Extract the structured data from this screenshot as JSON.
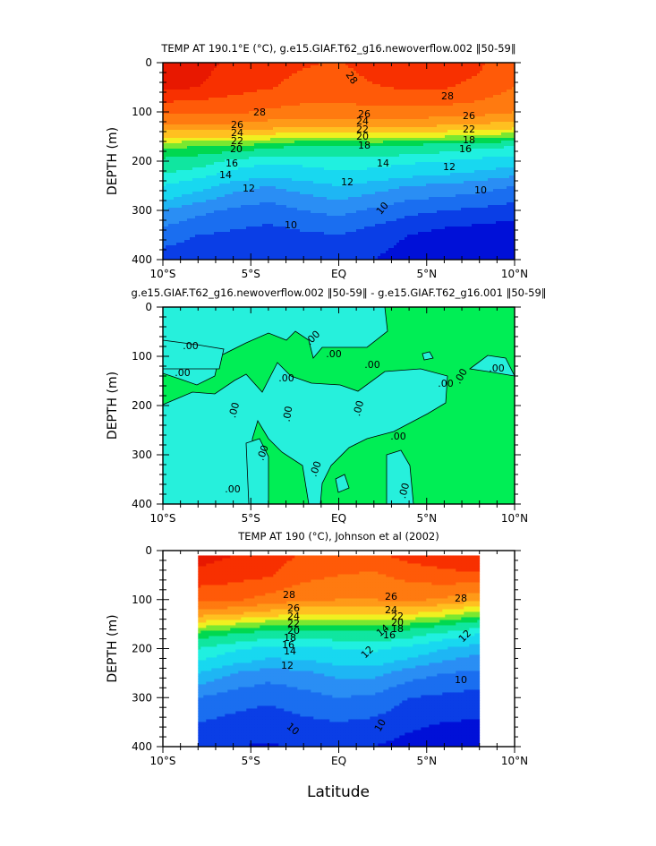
{
  "figure": {
    "xlabel": "Latitude"
  },
  "chart_data": [
    {
      "type": "heatmap",
      "title": "TEMP AT 190.1°E (°C), g.e15.GIAF.T62_g16.newoverflow.002 ‖50-59‖",
      "xlabel": "",
      "ylabel": "DEPTH (m)",
      "xlim": [
        -10,
        10
      ],
      "ylim": [
        400,
        0
      ],
      "x_ticks": [
        -10,
        -5,
        0,
        5,
        10
      ],
      "x_tick_labels": [
        "10°S",
        "5°S",
        "EQ",
        "5°N",
        "10°N"
      ],
      "y_ticks": [
        0,
        100,
        200,
        300,
        400
      ],
      "y_tick_labels": [
        "0",
        "100",
        "200",
        "300",
        "400"
      ],
      "lat": [
        -10,
        -8,
        -6,
        -4,
        -2,
        0,
        2,
        4,
        6,
        8,
        10
      ],
      "depth": [
        0,
        50,
        100,
        130,
        150,
        170,
        200,
        250,
        300,
        350,
        400
      ],
      "temperature": [
        [
          30,
          29.5,
          29,
          28.6,
          28.4,
          28.2,
          28.8,
          29,
          29,
          28.5,
          27.5
        ],
        [
          29.5,
          29.2,
          28.8,
          28.4,
          28,
          27.8,
          28.2,
          28.5,
          28.4,
          28,
          27
        ],
        [
          27.5,
          27.5,
          27.3,
          26.8,
          26.5,
          26.5,
          26.6,
          26.6,
          26.5,
          26.2,
          25.5
        ],
        [
          25,
          25,
          25,
          24.5,
          24.2,
          24,
          24,
          24,
          23.8,
          23.5,
          23
        ],
        [
          22.5,
          22.5,
          22.5,
          22,
          21,
          21,
          21.5,
          21.2,
          21,
          20.5,
          20
        ],
        [
          20,
          19.5,
          19.5,
          18.5,
          17.8,
          17.5,
          18,
          17.5,
          17,
          16.5,
          16
        ],
        [
          17.5,
          17,
          15.5,
          14.8,
          15,
          15.5,
          15.3,
          14.8,
          14.5,
          14,
          13.5
        ],
        [
          14.5,
          13.5,
          12.5,
          12,
          12.5,
          13,
          12.5,
          12,
          11.8,
          11.5,
          11
        ],
        [
          12,
          11.3,
          10.8,
          10.5,
          11,
          11.3,
          10.8,
          10.3,
          10,
          9.8,
          9.5
        ],
        [
          10.5,
          10,
          9.8,
          9.6,
          9.8,
          10,
          9.5,
          9,
          8.6,
          8.4,
          8.2
        ],
        [
          9.5,
          9.3,
          9.2,
          9.2,
          9.2,
          9.3,
          9,
          8.5,
          8,
          7.8,
          7.6
        ]
      ],
      "contour_labels": [
        "28",
        "28",
        "28",
        "26",
        "26",
        "26",
        "24",
        "24",
        "22",
        "22",
        "22",
        "20",
        "20",
        "18",
        "18",
        "16",
        "16",
        "14",
        "14",
        "12",
        "12",
        "12",
        "10",
        "10",
        "10"
      ]
    },
    {
      "type": "heatmap",
      "title": "g.e15.GIAF.T62_g16.newoverflow.002 ‖50-59‖ - g.e15.GIAF.T62_g16.001 ‖50-59‖",
      "xlabel": "",
      "ylabel": "DEPTH (m)",
      "xlim": [
        -10,
        10
      ],
      "ylim": [
        400,
        0
      ],
      "x_ticks": [
        -10,
        -5,
        0,
        5,
        10
      ],
      "x_tick_labels": [
        "10°S",
        "5°S",
        "EQ",
        "5°N",
        "10°N"
      ],
      "y_ticks": [
        0,
        100,
        200,
        300,
        400
      ],
      "y_tick_labels": [
        "0",
        "100",
        "200",
        "300",
        "400"
      ],
      "background_color": "#00ee55",
      "negative_color": "#26f0dc",
      "contour_level": 0,
      "contour_labels": [
        ".00",
        ".00",
        ".00",
        ".00",
        ".00",
        ".00",
        ".00",
        ".00",
        ".00",
        ".00",
        ".00",
        ".00",
        ".00",
        ".00",
        ".00",
        ".00",
        ".00"
      ]
    },
    {
      "type": "heatmap",
      "title": "TEMP AT 190 (°C), Johnson et al (2002)",
      "xlabel": "Latitude",
      "ylabel": "DEPTH (m)",
      "xlim": [
        -10,
        10
      ],
      "ylim": [
        400,
        0
      ],
      "data_lat_range": [
        -8,
        8
      ],
      "data_depth_range": [
        10,
        400
      ],
      "x_ticks": [
        -10,
        -5,
        0,
        5,
        10
      ],
      "x_tick_labels": [
        "10°S",
        "5°S",
        "EQ",
        "5°N",
        "10°N"
      ],
      "y_ticks": [
        0,
        100,
        200,
        300,
        400
      ],
      "y_tick_labels": [
        "0",
        "100",
        "200",
        "300",
        "400"
      ],
      "lat": [
        -8,
        -6,
        -4,
        -2,
        0,
        2,
        4,
        6,
        8
      ],
      "depth": [
        10,
        50,
        100,
        130,
        150,
        170,
        200,
        250,
        300,
        350,
        400
      ],
      "temperature": [
        [
          29.5,
          29.2,
          28.8,
          28.2,
          27.8,
          28,
          28.8,
          29,
          29
        ],
        [
          29,
          28.8,
          28.5,
          27.5,
          27,
          26.8,
          27.5,
          28,
          28.2
        ],
        [
          27.5,
          27.3,
          26.5,
          25.8,
          25.5,
          25.5,
          25.8,
          25.3,
          24.5
        ],
        [
          24.5,
          24,
          23.2,
          22.5,
          22.5,
          22.8,
          22.5,
          21.5,
          20
        ],
        [
          22,
          21,
          20,
          19.5,
          19.8,
          20,
          19.5,
          18.5,
          17
        ],
        [
          19,
          18,
          17,
          16.8,
          17.2,
          17.5,
          16.8,
          15.5,
          14.5
        ],
        [
          16,
          14.8,
          14,
          14,
          14.5,
          14.8,
          14,
          13,
          12.3
        ],
        [
          13,
          12,
          11.5,
          11.8,
          12.3,
          12.3,
          11.5,
          11,
          10.8
        ],
        [
          11,
          10.5,
          10.2,
          10.6,
          11,
          10.8,
          10,
          9.8,
          9.6
        ],
        [
          10,
          9.7,
          9.5,
          9.8,
          10,
          9.8,
          9.3,
          9,
          8.9
        ],
        [
          9.3,
          9,
          8.9,
          9.1,
          9.3,
          9,
          8.6,
          8.2,
          8.1
        ]
      ],
      "contour_labels": [
        "28",
        "28",
        "26",
        "26",
        "24",
        "24",
        "22",
        "22",
        "20",
        "20",
        "18",
        "18",
        "16",
        "16",
        "14",
        "14",
        "12",
        "12",
        "12",
        "10",
        "10",
        "10"
      ]
    }
  ]
}
